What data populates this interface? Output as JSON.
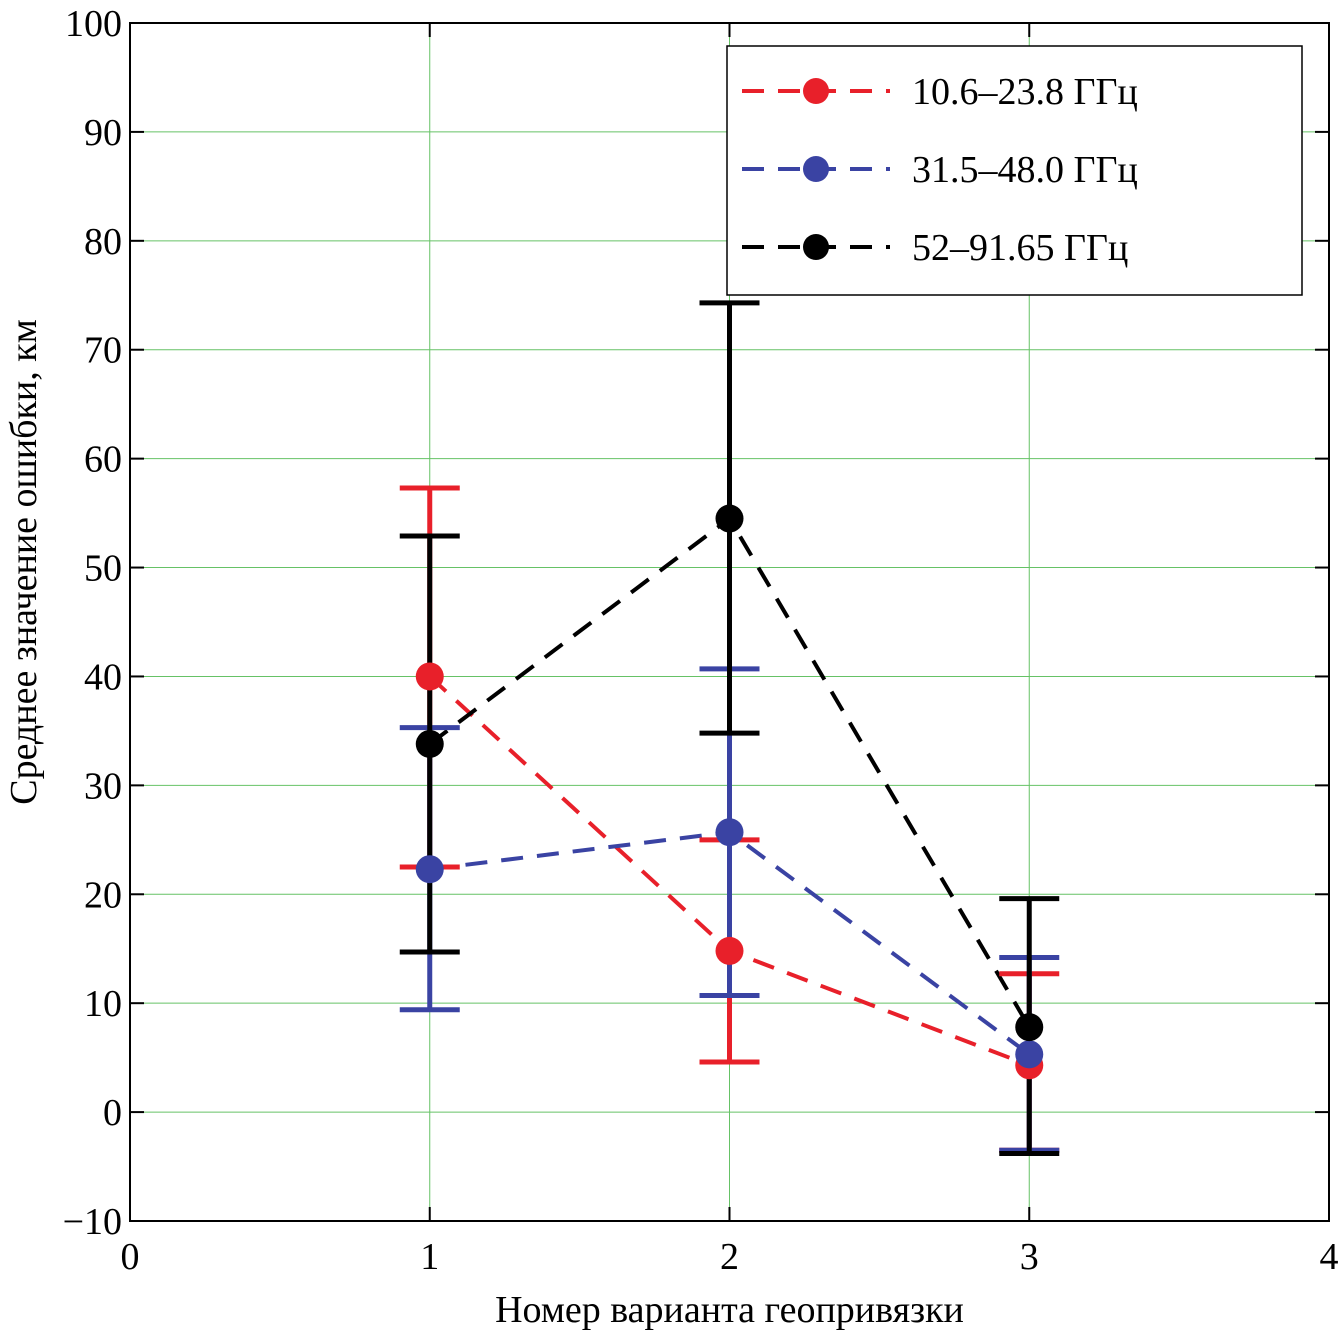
{
  "chart_data": {
    "type": "line",
    "xlabel": "Номер варианта геопривязки",
    "ylabel": "Среднее значение ошибки, км",
    "xlim": [
      0,
      4
    ],
    "ylim": [
      -10,
      100
    ],
    "xticks": [
      0,
      1,
      2,
      3,
      4
    ],
    "yticks": [
      -10,
      0,
      10,
      20,
      30,
      40,
      50,
      60,
      70,
      80,
      90,
      100
    ],
    "x_tick_labels": [
      "0",
      "1",
      "2",
      "3",
      "4"
    ],
    "y_tick_labels": [
      "−10",
      "0",
      "10",
      "20",
      "30",
      "40",
      "50",
      "60",
      "70",
      "80",
      "90",
      "100"
    ],
    "grid": true,
    "legend_position": "top-right",
    "series": [
      {
        "name": "10.6–23.8 ГГц",
        "color": "#e8202a",
        "x": [
          1,
          2,
          3
        ],
        "y": [
          40,
          14.8,
          4.3
        ],
        "err_low": [
          22.5,
          4.6,
          -3.5
        ],
        "err_high": [
          57.3,
          25.0,
          12.7
        ]
      },
      {
        "name": "31.5–48.0 ГГц",
        "color": "#3a43a3",
        "x": [
          1,
          2,
          3
        ],
        "y": [
          22.3,
          25.7,
          5.3
        ],
        "err_low": [
          9.4,
          10.7,
          -3.5
        ],
        "err_high": [
          35.3,
          40.7,
          14.2
        ]
      },
      {
        "name": "52–91.65 ГГц",
        "color": "#000000",
        "x": [
          1,
          2,
          3
        ],
        "y": [
          33.8,
          54.5,
          7.8
        ],
        "err_low": [
          14.7,
          34.8,
          -3.8
        ],
        "err_high": [
          52.9,
          74.3,
          19.6
        ]
      }
    ]
  }
}
